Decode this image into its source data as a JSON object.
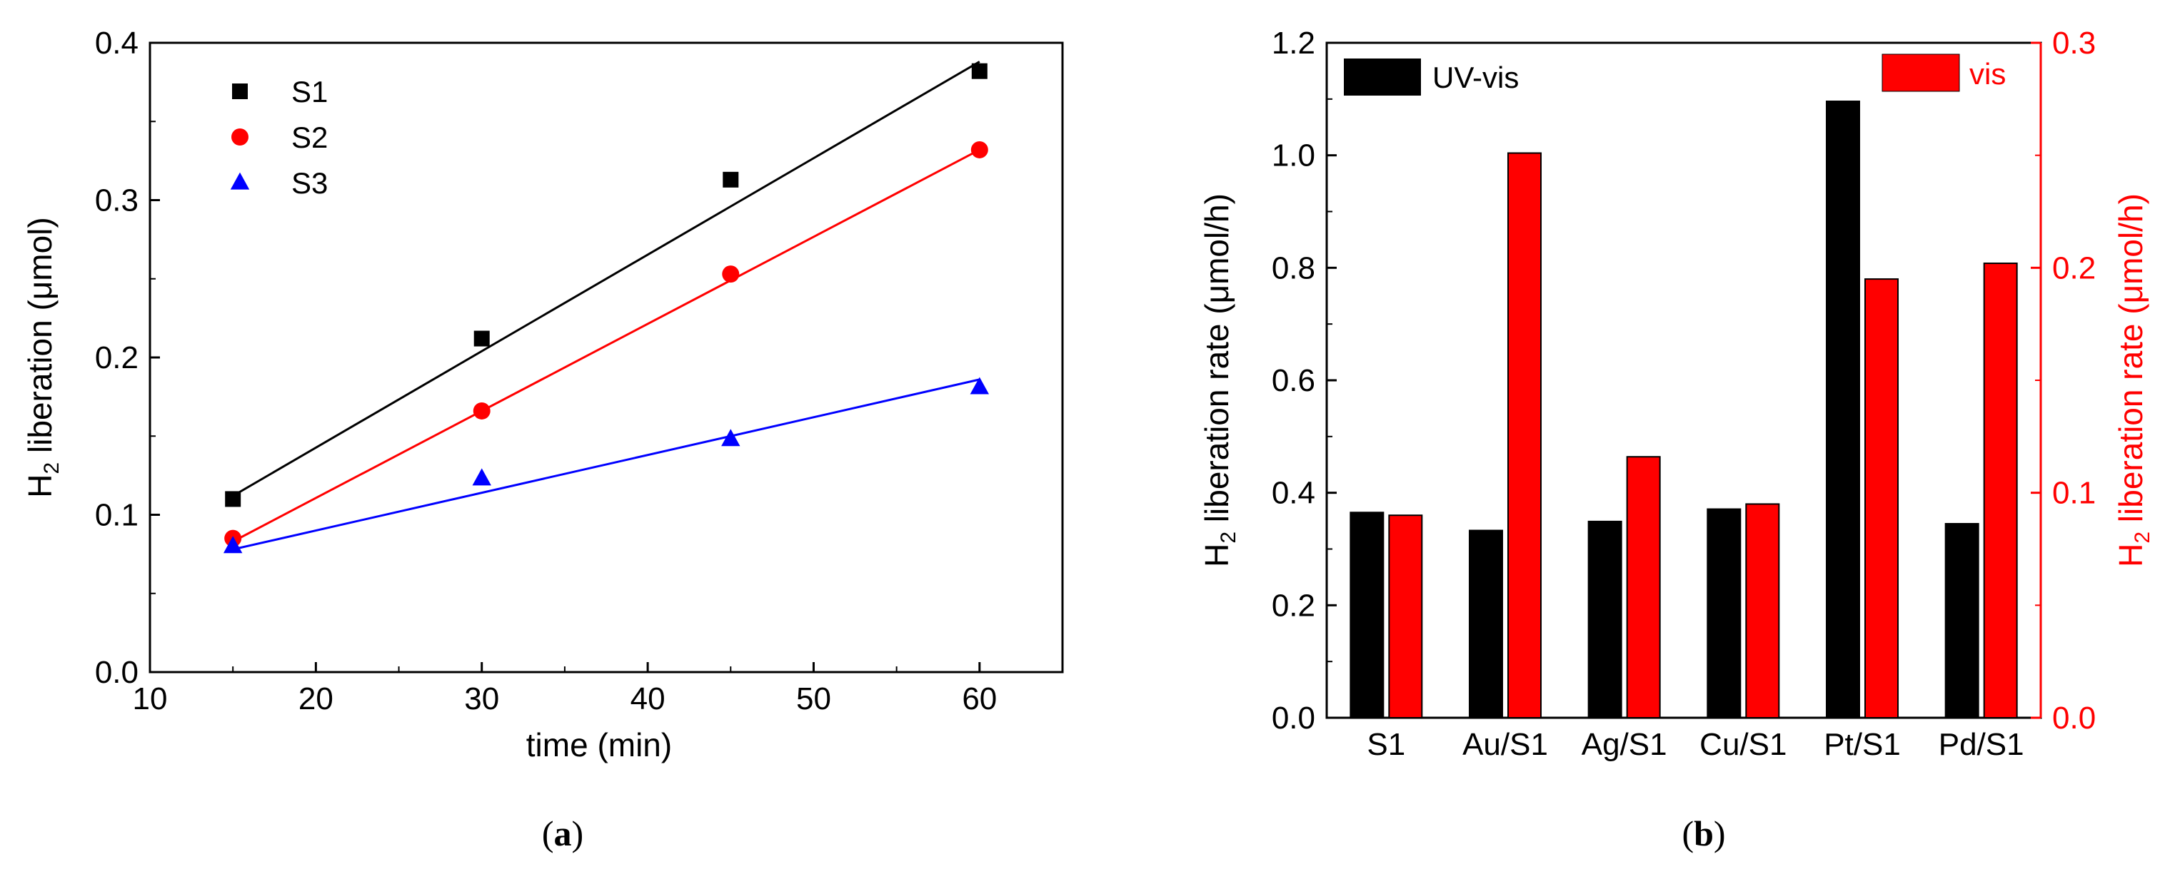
{
  "colors": {
    "black": "#000000",
    "red": "#ff0000",
    "blue": "#0000ff"
  },
  "panel_labels": {
    "a_open": "(",
    "a": "a",
    "a_close": ")",
    "b_open": "(",
    "b": "b",
    "b_close": ")"
  },
  "chart_data": [
    {
      "type": "scatter",
      "panel": "a",
      "xlabel": "time (min)",
      "ylabel": {
        "prefix": "H",
        "sub": "2",
        "rest": " liberation (μmol)"
      },
      "xlim": [
        10,
        65
      ],
      "ylim": [
        0,
        0.4
      ],
      "xticks": [
        "10",
        "20",
        "30",
        "40",
        "50",
        "60"
      ],
      "yticks": [
        "0.0",
        "0.1",
        "0.2",
        "0.3",
        "0.4"
      ],
      "legend_position": "top-left",
      "series": [
        {
          "name": "S1",
          "marker": "square",
          "color": "#000000",
          "x": [
            15,
            30,
            45,
            60
          ],
          "y": [
            0.11,
            0.212,
            0.313,
            0.382
          ],
          "fit": {
            "x": [
              15,
              60
            ],
            "y": [
              0.112,
              0.388
            ]
          }
        },
        {
          "name": "S2",
          "marker": "circle",
          "color": "#ff0000",
          "x": [
            15,
            30,
            45,
            60
          ],
          "y": [
            0.085,
            0.166,
            0.253,
            0.332
          ],
          "fit": {
            "x": [
              15,
              60
            ],
            "y": [
              0.083,
              0.332
            ]
          }
        },
        {
          "name": "S3",
          "marker": "triangle",
          "color": "#0000ff",
          "x": [
            15,
            30,
            45,
            60
          ],
          "y": [
            0.08,
            0.123,
            0.148,
            0.181
          ],
          "fit": {
            "x": [
              15,
              60
            ],
            "y": [
              0.078,
              0.186
            ]
          }
        }
      ]
    },
    {
      "type": "bar",
      "panel": "b",
      "categories": [
        "S1",
        "Au/S1",
        "Ag/S1",
        "Cu/S1",
        "Pt/S1",
        "Pd/S1"
      ],
      "ylabel_left": {
        "prefix": "H",
        "sub": "2",
        "rest": " liberation rate (μmol/h)"
      },
      "ylabel_right": {
        "prefix": "H",
        "sub": "2",
        "rest": " liberation rate (μmol/h)"
      },
      "ylim_left": [
        0,
        1.2
      ],
      "ylim_right": [
        0,
        0.3
      ],
      "yticks_left": [
        "0.0",
        "0.2",
        "0.4",
        "0.6",
        "0.8",
        "1.0",
        "1.2"
      ],
      "yticks_right": [
        "0.0",
        "0.1",
        "0.2",
        "0.3"
      ],
      "series": [
        {
          "name": "UV-vis",
          "axis": "left",
          "color": "#000000",
          "values": [
            0.365,
            0.333,
            0.349,
            0.371,
            1.096,
            0.345
          ],
          "legend_position": "top-left"
        },
        {
          "name": "vis",
          "axis": "right",
          "color": "#ff0000",
          "values": [
            0.09,
            0.251,
            0.116,
            0.095,
            0.195,
            0.202
          ],
          "legend_position": "top-right"
        }
      ]
    }
  ]
}
